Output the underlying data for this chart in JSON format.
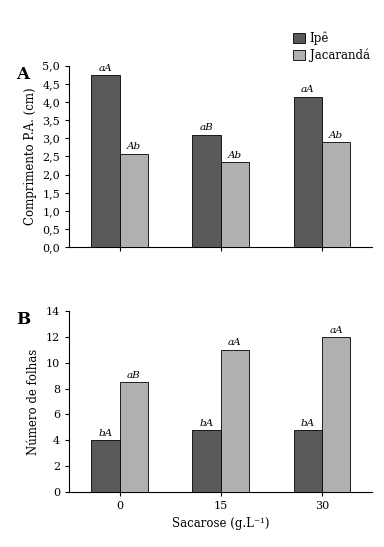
{
  "panel_A": {
    "categories": [
      "0",
      "15",
      "30"
    ],
    "ipe_values": [
      4.75,
      3.1,
      4.15
    ],
    "jacaranda_values": [
      2.58,
      2.35,
      2.9
    ],
    "ipe_labels": [
      "aA",
      "aB",
      "aA"
    ],
    "jacaranda_labels": [
      "Ab",
      "Ab",
      "Ab"
    ],
    "ylabel": "Comprimento P.A. (cm)",
    "ylim": [
      0,
      5.0
    ],
    "yticks": [
      0.0,
      0.5,
      1.0,
      1.5,
      2.0,
      2.5,
      3.0,
      3.5,
      4.0,
      4.5,
      5.0
    ],
    "panel_label": "A"
  },
  "panel_B": {
    "categories": [
      "0",
      "15",
      "30"
    ],
    "ipe_values": [
      4.0,
      4.8,
      4.8
    ],
    "jacaranda_values": [
      8.5,
      11.0,
      12.0
    ],
    "ipe_labels": [
      "bA",
      "bA",
      "bA"
    ],
    "jacaranda_labels": [
      "aB",
      "aA",
      "aA"
    ],
    "ylabel": "Número de folhas",
    "ylim": [
      0,
      14
    ],
    "yticks": [
      0,
      2,
      4,
      6,
      8,
      10,
      12,
      14
    ],
    "panel_label": "B"
  },
  "xlabel": "Sacarose (g.L⁻¹)",
  "ipe_color": "#595959",
  "jacaranda_color": "#b0b0b0",
  "legend_labels": [
    "Ipê",
    "Jacarandá"
  ],
  "bar_width": 0.28,
  "label_fontsize": 7.5,
  "tick_fontsize": 8,
  "axis_label_fontsize": 8.5,
  "legend_fontsize": 8.5,
  "panel_label_fontsize": 12
}
